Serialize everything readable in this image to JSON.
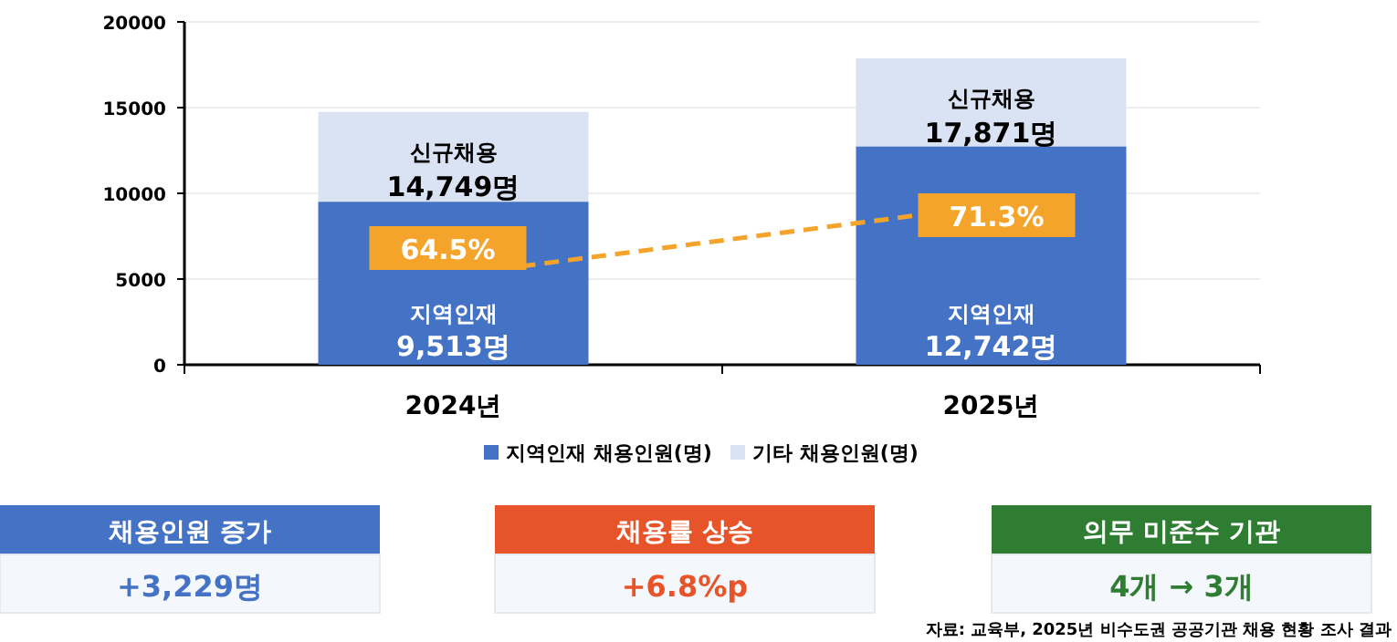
{
  "chart_data": [
    {
      "type": "bar",
      "stacked": true,
      "categories": [
        "2024년",
        "2025년"
      ],
      "series": [
        {
          "name": "지역인재 채용인원(명)",
          "color": "#4472c4",
          "values": [
            9513,
            12742
          ],
          "value_labels": [
            "지역인재\n9,513명",
            "지역인재\n12,742명"
          ]
        },
        {
          "name": "기타 채용인원(명)",
          "color": "#dae3f3",
          "values": [
            5236,
            5129
          ]
        }
      ],
      "totals": [
        "신규채용\n14,749명",
        "신규채용\n17,871명"
      ],
      "ylim": [
        0,
        20000
      ],
      "yticks": [
        0,
        5000,
        10000,
        15000,
        20000
      ],
      "grid": "y",
      "legend": "bottom",
      "annotations": [
        "64.5%",
        "71.3%"
      ]
    },
    {
      "type": "other",
      "colors": [
        "#4472c4",
        "#e8542a",
        "#2e7d32"
      ],
      "annotations": [
        "채용인원 증가",
        "+3,229명",
        "채용률 상승",
        "+6.8%p",
        "의무 미준수 기관",
        "4개 → 3개",
        "자료: 교육부, 2025년 비수도권 공공기관 채용 현황 조사 결과"
      ]
    }
  ]
}
